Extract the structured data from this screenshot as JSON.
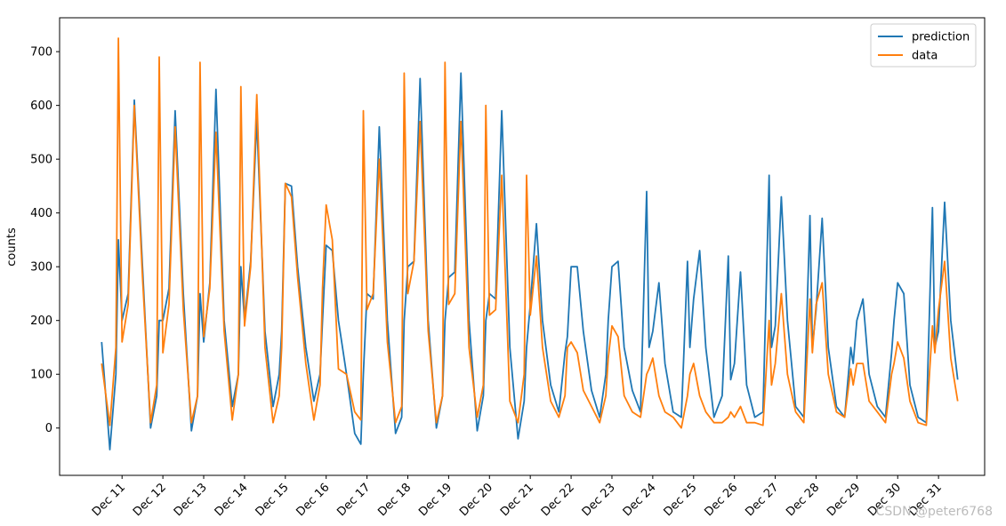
{
  "chart_data": {
    "type": "line",
    "ylabel": "counts",
    "x": [
      10.5,
      10.7,
      10.85,
      10.91,
      11,
      11.15,
      11.3,
      11.5,
      11.7,
      11.85,
      11.91,
      12,
      12.15,
      12.3,
      12.5,
      12.7,
      12.85,
      12.91,
      13,
      13.15,
      13.3,
      13.5,
      13.7,
      13.85,
      13.91,
      14,
      14.15,
      14.3,
      14.5,
      14.7,
      14.85,
      14.91,
      15,
      15.15,
      15.3,
      15.5,
      15.7,
      15.85,
      15.91,
      16,
      16.15,
      16.3,
      16.5,
      16.7,
      16.85,
      16.91,
      17,
      17.15,
      17.3,
      17.5,
      17.7,
      17.85,
      17.91,
      18,
      18.15,
      18.3,
      18.5,
      18.7,
      18.85,
      18.91,
      19,
      19.15,
      19.3,
      19.5,
      19.7,
      19.85,
      19.91,
      20,
      20.15,
      20.3,
      20.5,
      20.7,
      20.85,
      20.91,
      21,
      21.15,
      21.3,
      21.5,
      21.7,
      21.85,
      21.91,
      22,
      22.15,
      22.3,
      22.5,
      22.7,
      22.85,
      22.91,
      23,
      23.15,
      23.3,
      23.5,
      23.7,
      23.85,
      23.91,
      24,
      24.15,
      24.3,
      24.5,
      24.7,
      24.85,
      24.91,
      25,
      25.15,
      25.3,
      25.5,
      25.7,
      25.85,
      25.91,
      26,
      26.15,
      26.3,
      26.5,
      26.7,
      26.85,
      26.91,
      27,
      27.15,
      27.3,
      27.5,
      27.7,
      27.85,
      27.91,
      28,
      28.15,
      28.3,
      28.5,
      28.7,
      28.85,
      28.91,
      29,
      29.15,
      29.3,
      29.5,
      29.7,
      29.85,
      29.91,
      30,
      30.15,
      30.3,
      30.5,
      30.7,
      30.85,
      30.91,
      31,
      31.15,
      31.3,
      31.47
    ],
    "series": [
      {
        "name": "prediction",
        "color": "#1f77b4",
        "values": [
          160,
          -40,
          100,
          350,
          200,
          250,
          610,
          300,
          0,
          60,
          200,
          200,
          260,
          590,
          250,
          -5,
          60,
          250,
          160,
          270,
          630,
          200,
          40,
          100,
          300,
          200,
          310,
          575,
          180,
          40,
          100,
          180,
          455,
          450,
          300,
          150,
          50,
          100,
          200,
          340,
          330,
          200,
          100,
          -10,
          -30,
          100,
          250,
          240,
          560,
          200,
          -10,
          20,
          200,
          300,
          310,
          650,
          200,
          0,
          60,
          200,
          280,
          290,
          660,
          200,
          -5,
          60,
          200,
          250,
          240,
          590,
          150,
          -20,
          50,
          150,
          230,
          380,
          200,
          80,
          30,
          140,
          170,
          300,
          300,
          180,
          70,
          20,
          100,
          200,
          300,
          310,
          150,
          70,
          30,
          440,
          150,
          180,
          270,
          120,
          30,
          20,
          310,
          150,
          240,
          330,
          150,
          20,
          60,
          320,
          90,
          120,
          290,
          80,
          20,
          30,
          470,
          150,
          190,
          430,
          200,
          40,
          20,
          395,
          150,
          220,
          390,
          150,
          40,
          20,
          150,
          120,
          200,
          240,
          100,
          40,
          20,
          140,
          200,
          270,
          250,
          80,
          20,
          10,
          410,
          150,
          180,
          420,
          200,
          90
        ]
      },
      {
        "name": "data",
        "color": "#ff7f0e",
        "values": [
          120,
          5,
          150,
          725,
          160,
          230,
          600,
          280,
          10,
          80,
          690,
          140,
          230,
          560,
          220,
          10,
          60,
          680,
          170,
          260,
          550,
          180,
          15,
          100,
          635,
          190,
          300,
          620,
          150,
          10,
          60,
          150,
          455,
          430,
          280,
          120,
          15,
          80,
          260,
          415,
          350,
          110,
          100,
          30,
          15,
          590,
          220,
          250,
          500,
          160,
          10,
          40,
          660,
          250,
          310,
          570,
          180,
          10,
          60,
          680,
          230,
          250,
          570,
          150,
          20,
          80,
          600,
          210,
          220,
          470,
          50,
          10,
          100,
          470,
          210,
          320,
          150,
          50,
          20,
          60,
          150,
          160,
          140,
          70,
          40,
          10,
          60,
          130,
          190,
          170,
          60,
          30,
          20,
          100,
          110,
          130,
          60,
          30,
          20,
          0,
          60,
          100,
          120,
          60,
          30,
          10,
          10,
          20,
          30,
          20,
          40,
          10,
          10,
          5,
          200,
          80,
          120,
          250,
          100,
          30,
          10,
          240,
          140,
          230,
          270,
          100,
          30,
          20,
          110,
          80,
          120,
          120,
          50,
          30,
          10,
          100,
          120,
          160,
          130,
          50,
          10,
          5,
          190,
          140,
          220,
          310,
          130,
          50
        ]
      }
    ],
    "xlim": [
      9.47,
      32.13
    ],
    "xticks": [
      {
        "value": 11,
        "label": "Dec 11"
      },
      {
        "value": 12,
        "label": "Dec 12"
      },
      {
        "value": 13,
        "label": "Dec 13"
      },
      {
        "value": 14,
        "label": "Dec 14"
      },
      {
        "value": 15,
        "label": "Dec 15"
      },
      {
        "value": 16,
        "label": "Dec 16"
      },
      {
        "value": 17,
        "label": "Dec 17"
      },
      {
        "value": 18,
        "label": "Dec 18"
      },
      {
        "value": 19,
        "label": "Dec 19"
      },
      {
        "value": 20,
        "label": "Dec 20"
      },
      {
        "value": 21,
        "label": "Dec 21"
      },
      {
        "value": 22,
        "label": "Dec 22"
      },
      {
        "value": 23,
        "label": "Dec 23"
      },
      {
        "value": 24,
        "label": "Dec 24"
      },
      {
        "value": 25,
        "label": "Dec 25"
      },
      {
        "value": 26,
        "label": "Dec 26"
      },
      {
        "value": 27,
        "label": "Dec 27"
      },
      {
        "value": 28,
        "label": "Dec 28"
      },
      {
        "value": 29,
        "label": "Dec 29"
      },
      {
        "value": 30,
        "label": "Dec 30"
      },
      {
        "value": 31,
        "label": "Dec 31"
      }
    ],
    "ylim": [
      -88,
      763
    ],
    "yticks": [
      0,
      100,
      200,
      300,
      400,
      500,
      600,
      700
    ],
    "legend": "upper right",
    "watermark": "CSDN @peter6768"
  }
}
